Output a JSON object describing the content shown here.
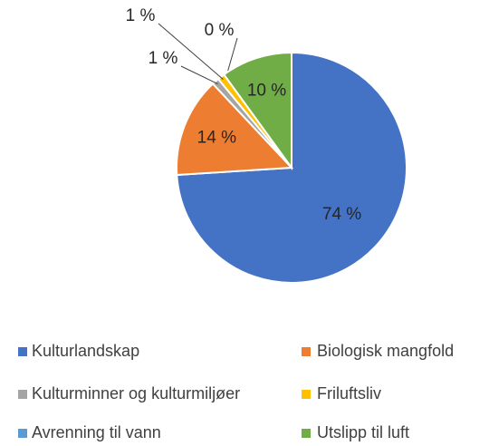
{
  "chart_data": {
    "type": "pie",
    "categories": [
      "Kulturlandskap",
      "Biologisk mangfold",
      "Kulturminner og kulturmiljøer",
      "Friluftsliv",
      "Avrenning til vann",
      "Utslipp til luft"
    ],
    "values": [
      74,
      14,
      1,
      1,
      0,
      10
    ],
    "value_labels": [
      "74 %",
      "14 %",
      "1 %",
      "1 %",
      "0 %",
      "10 %"
    ],
    "colors": [
      "#4472c4",
      "#ed7d31",
      "#a5a5a5",
      "#ffc000",
      "#5b9bd5",
      "#70ad47"
    ],
    "legend": "bottom"
  }
}
